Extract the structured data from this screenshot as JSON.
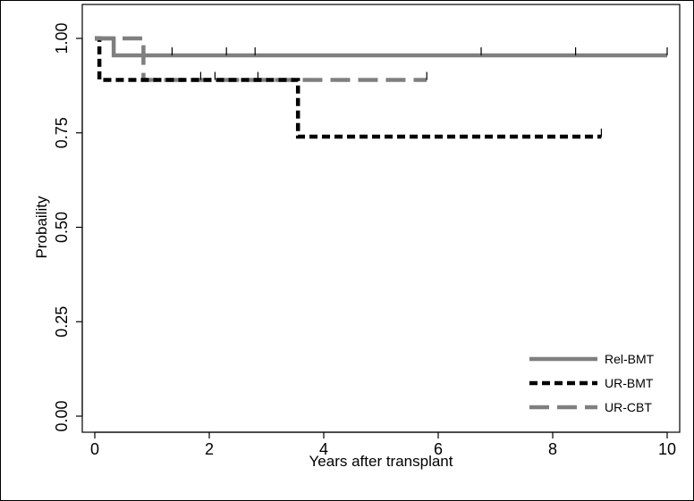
{
  "chart_data": {
    "type": "line",
    "title": "",
    "xlabel": "Years after transplant",
    "ylabel": "Probaility",
    "xlim": [
      0,
      10
    ],
    "ylim": [
      0,
      1
    ],
    "x_ticks": [
      0,
      2,
      4,
      6,
      8,
      10
    ],
    "x_tick_labels": [
      "0",
      "2",
      "4",
      "6",
      "8",
      "10"
    ],
    "y_ticks": [
      0,
      0.25,
      0.5,
      0.75,
      1
    ],
    "y_tick_labels": [
      "0.00",
      "0.25",
      "0.50",
      "0.75",
      "1.00"
    ],
    "grid": false,
    "legend_position": "bottom-right",
    "series": [
      {
        "name": "Rel-BMT",
        "style": "solid",
        "color": "#7f7f7f",
        "steps": [
          [
            0,
            1.0
          ],
          [
            0.33,
            0.955
          ],
          [
            10.0,
            0.955
          ]
        ],
        "censor_marks": [
          [
            1.35,
            0.955
          ],
          [
            2.3,
            0.955
          ],
          [
            2.8,
            0.955
          ],
          [
            6.75,
            0.955
          ],
          [
            8.4,
            0.955
          ],
          [
            10.0,
            0.955
          ]
        ]
      },
      {
        "name": "UR-BMT",
        "style": "short-dash",
        "color": "#000000",
        "steps": [
          [
            0,
            1.0
          ],
          [
            0.08,
            0.89
          ],
          [
            3.55,
            0.74
          ],
          [
            8.85,
            0.74
          ]
        ],
        "censor_marks": [
          [
            8.85,
            0.74
          ]
        ]
      },
      {
        "name": "UR-CBT",
        "style": "long-dash",
        "color": "#7f7f7f",
        "steps": [
          [
            0,
            1.0
          ],
          [
            0.85,
            0.89
          ],
          [
            5.8,
            0.89
          ]
        ],
        "censor_marks": [
          [
            1.85,
            0.89
          ],
          [
            2.1,
            0.89
          ],
          [
            2.85,
            0.89
          ],
          [
            5.8,
            0.89
          ]
        ]
      }
    ]
  }
}
